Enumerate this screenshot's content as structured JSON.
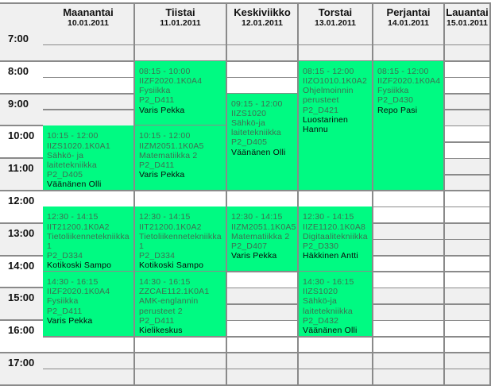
{
  "days": [
    {
      "name": "Maanantai",
      "date": "10.01.2011"
    },
    {
      "name": "Tiistai",
      "date": "11.01.2011"
    },
    {
      "name": "Keskiviikko",
      "date": "12.01.2011"
    },
    {
      "name": "Torstai",
      "date": "13.01.2011"
    },
    {
      "name": "Perjantai",
      "date": "14.01.2011"
    },
    {
      "name": "Lauantai",
      "date": "15.01.2011"
    }
  ],
  "hours": [
    "7:00",
    "8:00",
    "9:00",
    "10:00",
    "11:00",
    "12:00",
    "13:00",
    "14:00",
    "15:00",
    "16:00",
    "17:00"
  ],
  "colors": {
    "event": "#00fa82",
    "shade": "#f0f0f0",
    "border": "#8a8a8a"
  },
  "events": [
    {
      "day": 0,
      "time": "10:15 - 12:00",
      "code": "IIZS1020.1K0A1",
      "course": "Sähkö- ja laitetekniikka",
      "room": "P2_D405",
      "teacher": "Väänänen Olli"
    },
    {
      "day": 0,
      "time": "12:30 - 14:15",
      "code": "IIT21200.1K0A2",
      "course": "Tietoliikennetekniikka 1",
      "room": "P2_D334",
      "teacher": "Kotikoski Sampo"
    },
    {
      "day": 0,
      "time": "14:30 - 16:15",
      "code": "IIZF2020.1K0A4",
      "course": "Fysiikka",
      "room": "P2_D411",
      "teacher": "Varis Pekka"
    },
    {
      "day": 1,
      "time": "08:15 - 10:00",
      "code": "IIZF2020.1K0A4",
      "course": "Fysiikka",
      "room": "P2_D411",
      "teacher": "Varis Pekka"
    },
    {
      "day": 1,
      "time": "10:15 - 12:00",
      "code": "IIZM2051.1K0A5",
      "course": "Matematiikka 2",
      "room": "P2_D411",
      "teacher": "Varis Pekka"
    },
    {
      "day": 1,
      "time": "12:30 - 14:15",
      "code": "IIT21200.1K0A2",
      "course": "Tietoliikennetekniikka 1",
      "room": "P2_D334",
      "teacher": "Kotikoski Sampo"
    },
    {
      "day": 1,
      "time": "14:30 - 16:15",
      "code": "ZZCAE112.1K0A1",
      "course": "AMK-englannin perusteet 2",
      "room": "P2_D411",
      "teacher": "Kielikeskus"
    },
    {
      "day": 2,
      "time": "09:15 - 12:00",
      "code": "IIZS1020",
      "course": "Sähkö-ja laitetekniikka",
      "room": "P2_D405",
      "teacher": "Väänänen Olli"
    },
    {
      "day": 2,
      "time": "12:30 - 14:15",
      "code": "IIZM2051.1K0A5",
      "course": "Matematiikka 2",
      "room": "P2_D407",
      "teacher": "Varis Pekka"
    },
    {
      "day": 3,
      "time": "08:15 - 12:00",
      "code": "IIZO1010.1K0A2",
      "course": "Ohjelmoinnin perusteet",
      "room": "P2_D421",
      "teacher": "Luostarinen Hannu"
    },
    {
      "day": 3,
      "time": "12:30 - 14:15",
      "code": "IIZE1120.1K0A8",
      "course": "Digitaalitekniikka",
      "room": "P2_D330",
      "teacher": "Häkkinen Antti"
    },
    {
      "day": 3,
      "time": "14:30 - 16:15",
      "code": "IIZS1020",
      "course": "Sähkö-ja laitetekniikka",
      "room": "P2_D432",
      "teacher": "Väänänen Olli"
    },
    {
      "day": 4,
      "time": "08:15 - 12:00",
      "code": "IIZF2020.1K0A4",
      "course": "Fysiikka",
      "room": "P2_D430",
      "teacher": "Repo Pasi"
    }
  ]
}
